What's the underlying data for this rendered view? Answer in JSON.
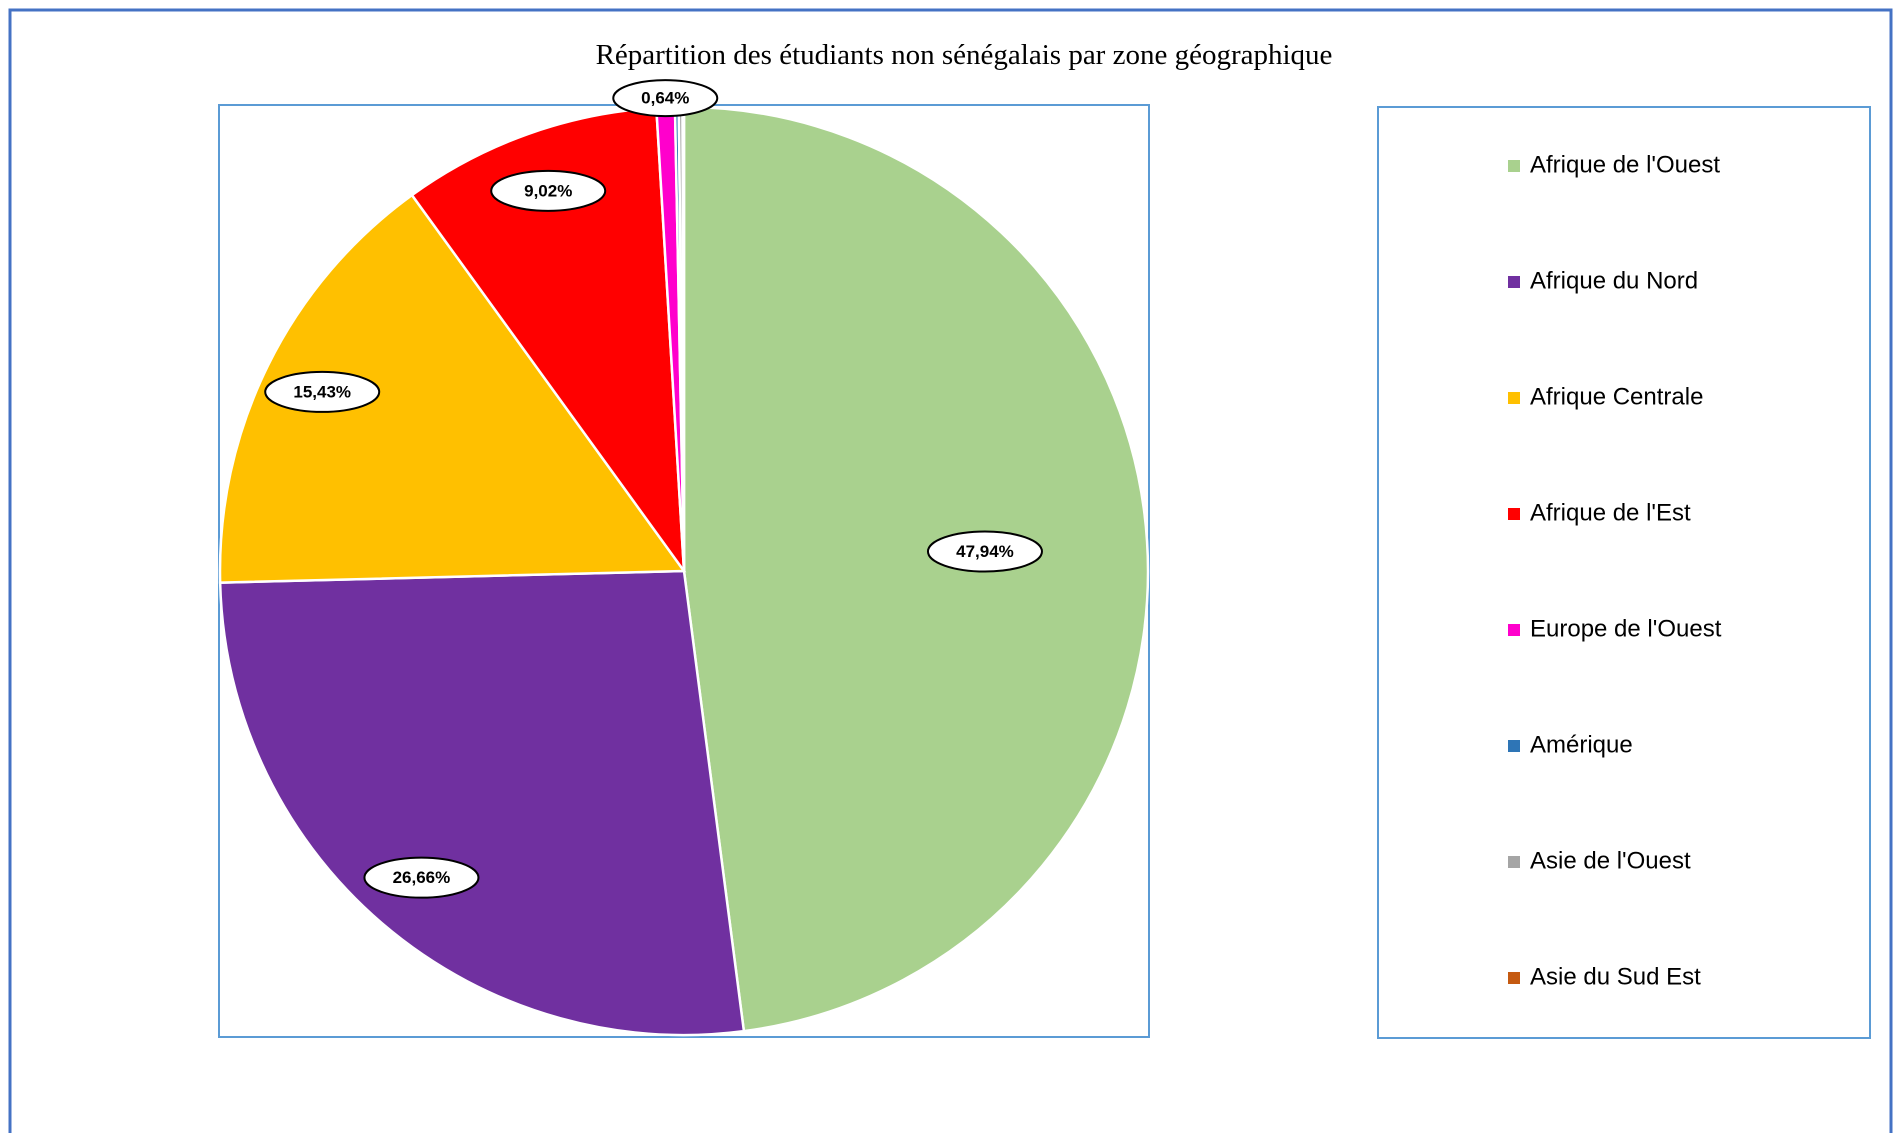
{
  "chart_data": {
    "type": "pie",
    "title": "Répartition des étudiants non sénégalais par zone géographique",
    "categories": [
      "Afrique de l'Ouest",
      "Afrique du Nord",
      "Afrique Centrale",
      "Afrique de l'Est",
      "Europe de l'Ouest",
      "Amérique",
      "Asie de l'Ouest",
      "Asie du Sud Est"
    ],
    "values": [
      47.94,
      26.66,
      15.43,
      9.02,
      0.64,
      0.13,
      0.13,
      0.05
    ],
    "value_labels": [
      "47,94%",
      "26,66%",
      "15,43%",
      "9,02%",
      "0,64%",
      null,
      null,
      null
    ],
    "colors": [
      "#a9d18e",
      "#7030a0",
      "#ffc000",
      "#ff0000",
      "#ff00cc",
      "#2e75b6",
      "#a5a5a5",
      "#c55a11"
    ],
    "legend": "right"
  }
}
